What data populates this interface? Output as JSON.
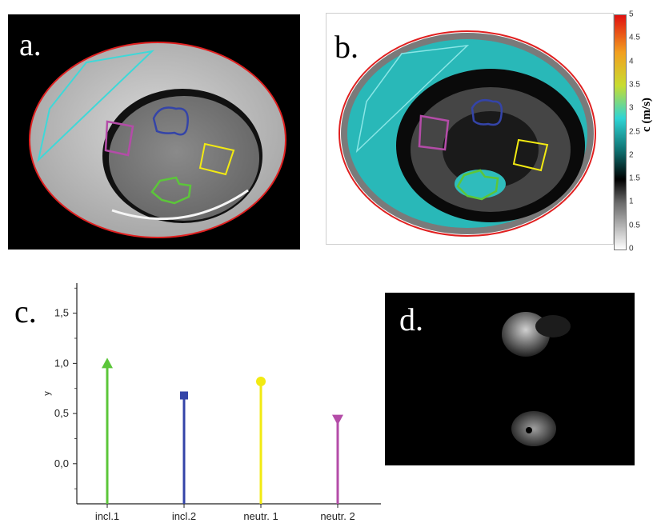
{
  "panels": {
    "a": {
      "label": "a."
    },
    "b": {
      "label": "b."
    },
    "c": {
      "label": "c."
    },
    "d": {
      "label": "d."
    }
  },
  "colorbar": {
    "title": "c (m/s)",
    "ticks": [
      "0",
      "0.5",
      "1",
      "1.5",
      "2",
      "2.5",
      "3",
      "3.5",
      "4",
      "4.5",
      "5"
    ],
    "range": [
      0,
      5
    ]
  },
  "colors": {
    "incl1": "#5cc63a",
    "incl2": "#3444a8",
    "neutr1": "#f2ea12",
    "neutr2": "#b44ca8",
    "outline_red": "#e02020",
    "outline_cyan": "#3fd8d8"
  },
  "chart_data": {
    "type": "bar",
    "categories": [
      "incl.1",
      "incl.2",
      "neutr. 1",
      "neutr. 2"
    ],
    "values": [
      1.0,
      0.68,
      0.82,
      0.44
    ],
    "markers": [
      "triangle-up",
      "square",
      "circle",
      "triangle-down"
    ],
    "ylabel": "y",
    "ylim": [
      -0.4,
      1.8
    ],
    "yticks": [
      "0,0",
      "0,5",
      "1,0",
      "1,5"
    ],
    "ytick_values": [
      0,
      0.5,
      1.0,
      1.5
    ]
  }
}
